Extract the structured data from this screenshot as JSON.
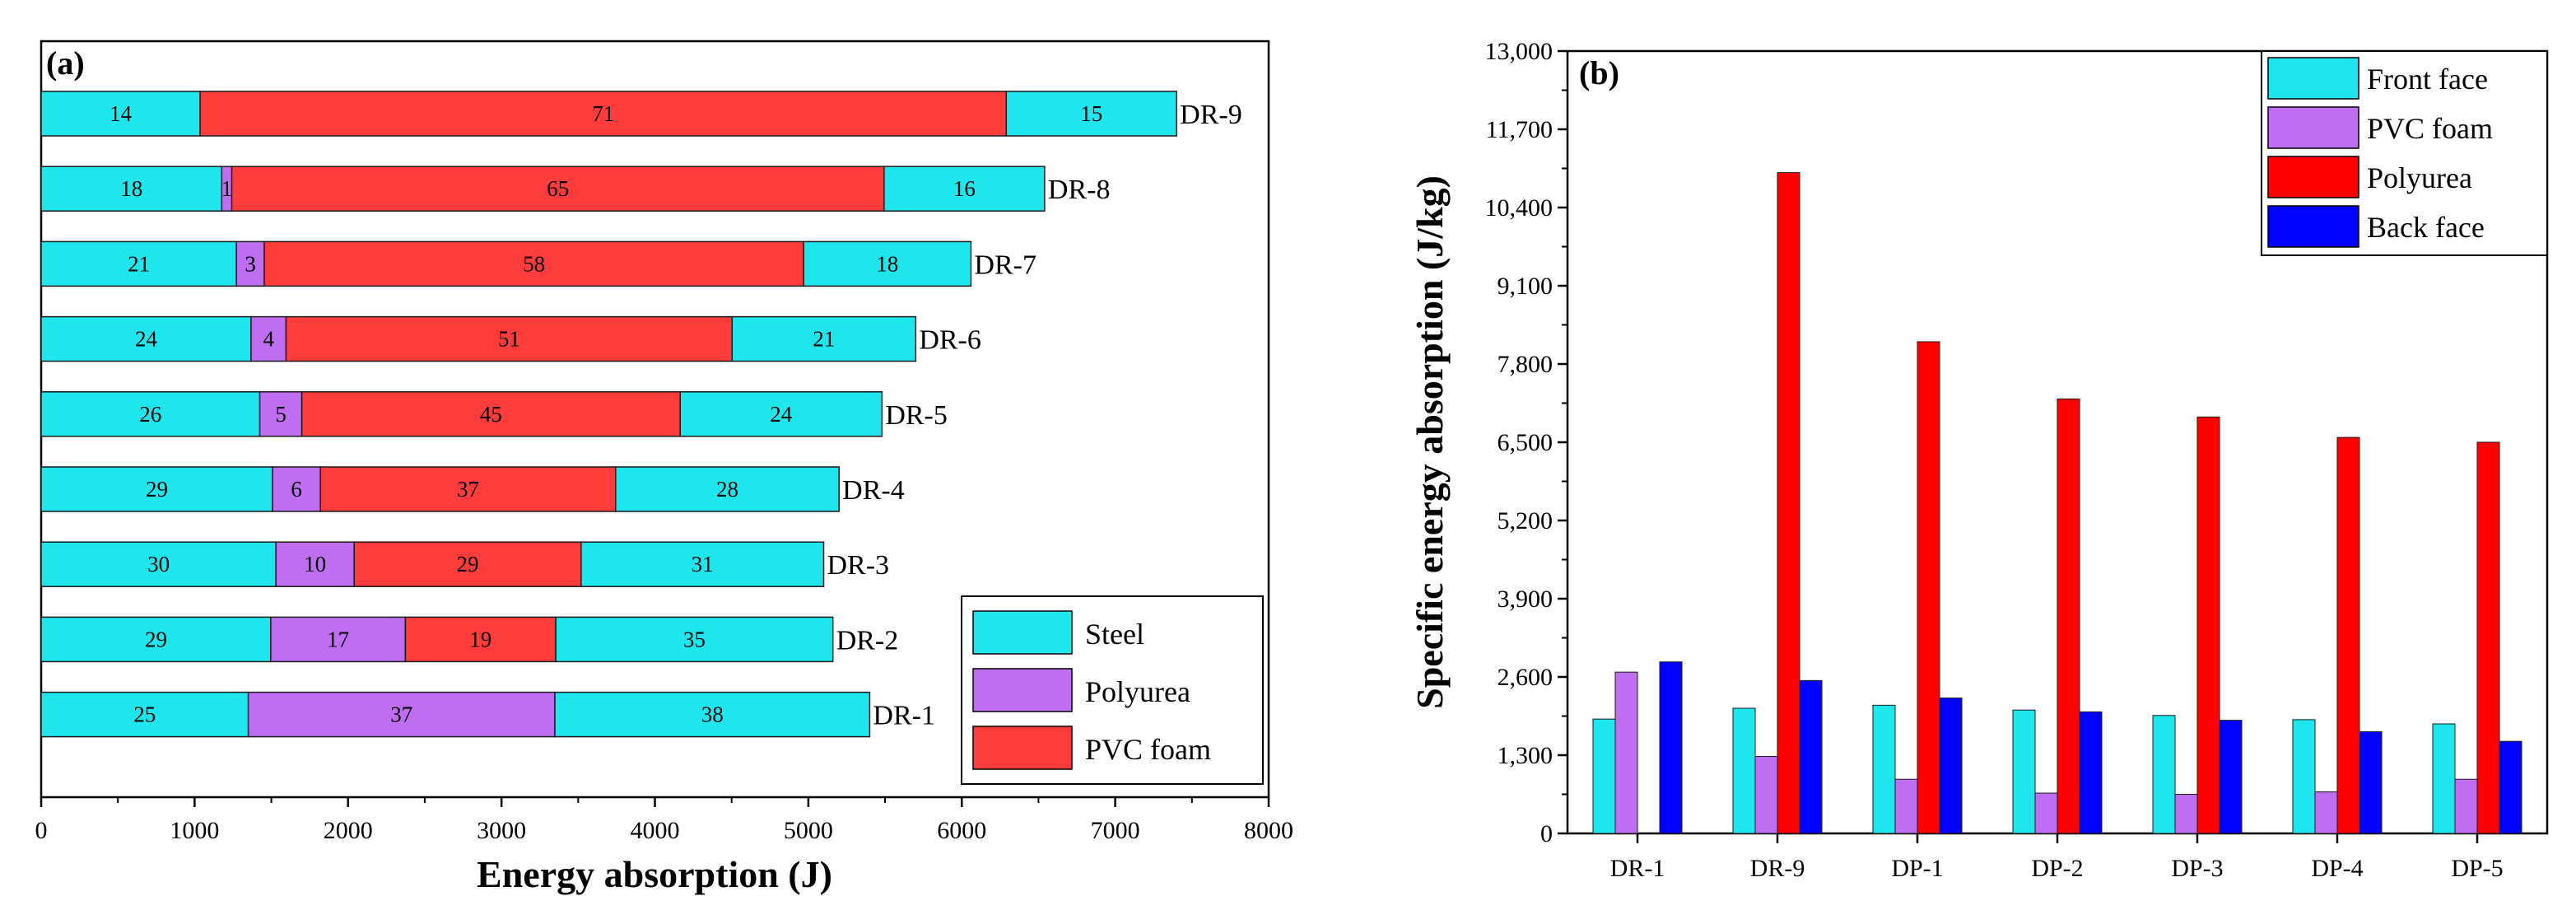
{
  "chart_data": [
    {
      "type": "bar",
      "orientation": "horizontal",
      "stacked": true,
      "panel_label": "(a)",
      "xlabel": "Energy absorption (J)",
      "ylabel": "",
      "xlim": [
        0,
        8000
      ],
      "xticks": [
        0,
        1000,
        2000,
        3000,
        4000,
        5000,
        6000,
        7000,
        8000
      ],
      "categories": [
        "DR-9",
        "DR-8",
        "DR-7",
        "DR-6",
        "DR-5",
        "DR-4",
        "DR-3",
        "DR-2",
        "DR-1"
      ],
      "totals": [
        7400,
        6540,
        6060,
        5700,
        5480,
        5200,
        5100,
        5160,
        5400
      ],
      "series": [
        {
          "name": "Steel",
          "color": "#1ee6ec",
          "segment": "first"
        },
        {
          "name": "Polyurea",
          "color": "#bf6ef2",
          "segment": "second"
        },
        {
          "name": "PVC  foam",
          "color": "#ff3c3c",
          "segment": "third"
        }
      ],
      "segments": [
        {
          "category": "DR-9",
          "parts": [
            {
              "series": "Steel",
              "percent": 14
            },
            {
              "series": "PVC  foam",
              "percent": 71
            },
            {
              "series": "Steel",
              "percent": 15
            }
          ]
        },
        {
          "category": "DR-8",
          "parts": [
            {
              "series": "Steel",
              "percent": 18
            },
            {
              "series": "Polyurea",
              "percent": 1
            },
            {
              "series": "PVC  foam",
              "percent": 65
            },
            {
              "series": "Steel",
              "percent": 16
            }
          ]
        },
        {
          "category": "DR-7",
          "parts": [
            {
              "series": "Steel",
              "percent": 21
            },
            {
              "series": "Polyurea",
              "percent": 3
            },
            {
              "series": "PVC  foam",
              "percent": 58
            },
            {
              "series": "Steel",
              "percent": 18
            }
          ]
        },
        {
          "category": "DR-6",
          "parts": [
            {
              "series": "Steel",
              "percent": 24
            },
            {
              "series": "Polyurea",
              "percent": 4
            },
            {
              "series": "PVC  foam",
              "percent": 51
            },
            {
              "series": "Steel",
              "percent": 21
            }
          ]
        },
        {
          "category": "DR-5",
          "parts": [
            {
              "series": "Steel",
              "percent": 26
            },
            {
              "series": "Polyurea",
              "percent": 5
            },
            {
              "series": "PVC  foam",
              "percent": 45
            },
            {
              "series": "Steel",
              "percent": 24
            }
          ]
        },
        {
          "category": "DR-4",
          "parts": [
            {
              "series": "Steel",
              "percent": 29
            },
            {
              "series": "Polyurea",
              "percent": 6
            },
            {
              "series": "PVC  foam",
              "percent": 37
            },
            {
              "series": "Steel",
              "percent": 28
            }
          ]
        },
        {
          "category": "DR-3",
          "parts": [
            {
              "series": "Steel",
              "percent": 30
            },
            {
              "series": "Polyurea",
              "percent": 10
            },
            {
              "series": "PVC  foam",
              "percent": 29
            },
            {
              "series": "Steel",
              "percent": 31
            }
          ]
        },
        {
          "category": "DR-2",
          "parts": [
            {
              "series": "Steel",
              "percent": 29
            },
            {
              "series": "Polyurea",
              "percent": 17
            },
            {
              "series": "PVC  foam",
              "percent": 19
            },
            {
              "series": "Steel",
              "percent": 35
            }
          ]
        },
        {
          "category": "DR-1",
          "parts": [
            {
              "series": "Steel",
              "percent": 25
            },
            {
              "series": "Polyurea",
              "percent": 37
            },
            {
              "series": "Steel",
              "percent": 38
            }
          ]
        }
      ],
      "legend": {
        "position": "bottom-right",
        "entries": [
          "Steel",
          "Polyurea",
          "PVC  foam"
        ]
      }
    },
    {
      "type": "bar",
      "orientation": "vertical",
      "grouped": true,
      "panel_label": "(b)",
      "xlabel": "",
      "ylabel": "Specific energy absorption (J/kg)",
      "ylim": [
        0,
        13000
      ],
      "yticks": [
        0,
        1300,
        2600,
        3900,
        5200,
        6500,
        7800,
        9100,
        10400,
        11700,
        13000
      ],
      "ytick_labels": [
        "0",
        "1,300",
        "2,600",
        "3,900",
        "5,200",
        "6,500",
        "7,800",
        "9,100",
        "10,400",
        "11,700",
        "13,000"
      ],
      "categories": [
        "DR-1",
        "DR-9",
        "DP-1",
        "DP-2",
        "DP-3",
        "DP-4",
        "DP-5"
      ],
      "series": [
        {
          "name": "Front face",
          "color": "#1ee6ec",
          "values": [
            1900,
            2080,
            2130,
            2050,
            1960,
            1890,
            1820
          ]
        },
        {
          "name": "PVC foam",
          "color": "#bf6ef2",
          "values": [
            2680,
            1280,
            900,
            670,
            650,
            690,
            900
          ]
        },
        {
          "name": "Polyurea",
          "color": "#ff0000",
          "values": [
            0,
            10980,
            8170,
            7220,
            6920,
            6580,
            6500
          ]
        },
        {
          "name": "Back face",
          "color": "#0000ff",
          "values": [
            2850,
            2540,
            2250,
            2020,
            1880,
            1690,
            1530
          ]
        }
      ],
      "legend": {
        "position": "top-right",
        "entries": [
          "Front face",
          "PVC foam",
          "Polyurea",
          "Back face"
        ]
      }
    }
  ]
}
